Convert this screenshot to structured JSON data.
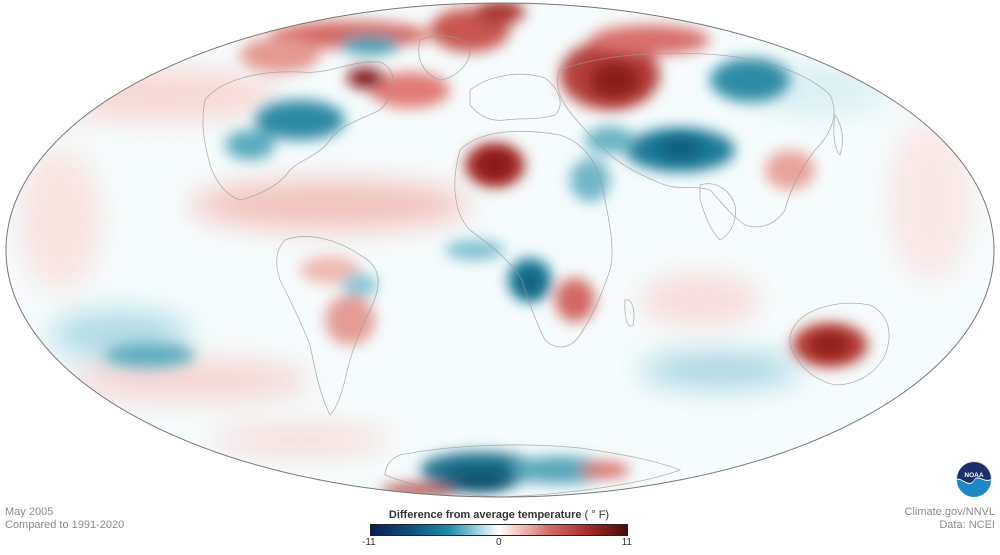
{
  "map": {
    "projection": "Robinson-like (elliptical world)",
    "colors": {
      "ocean_bg": "#ffffff",
      "outline": "#777777",
      "coast": "#9a9a9a",
      "warm_strong": "#8b1a1a",
      "warm_mid": "#c8504a",
      "warm_light": "#f3c3be",
      "cool_strong": "#0e5a78",
      "cool_mid": "#2c8fa8",
      "cool_light": "#b7e2ea"
    }
  },
  "caption": {
    "date": "May 2005",
    "baseline": "Compared to 1991-2020"
  },
  "legend": {
    "title": "Difference from average temperature",
    "unit": "( ° F)",
    "min": "-11",
    "mid": "0",
    "max": "11"
  },
  "credits": {
    "site": "Climate.gov/NNVL",
    "data": "Data: NCEI"
  },
  "logo": {
    "text": "NOAA"
  }
}
